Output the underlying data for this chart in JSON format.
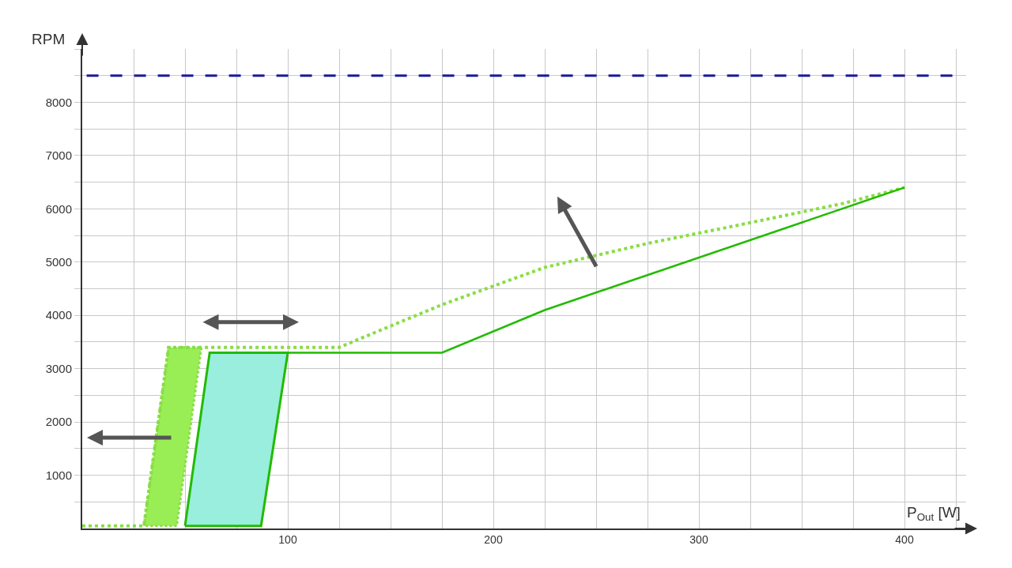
{
  "chart_data": {
    "type": "line",
    "xlabel": "P$_{Out}$ [W]",
    "ylabel": "RPM",
    "xlim": [
      0,
      430
    ],
    "xticks": [
      {
        "value": 0,
        "label": null
      },
      {
        "value": 25,
        "label": null
      },
      {
        "value": 50,
        "label": null
      },
      {
        "value": 75,
        "label": null
      },
      100,
      {
        "value": 125,
        "label": null
      },
      {
        "value": 150,
        "label": null
      },
      {
        "value": 175,
        "label": null
      },
      200,
      {
        "value": 225,
        "label": null
      },
      {
        "value": 250,
        "label": null
      },
      {
        "value": 275,
        "label": null
      },
      300,
      {
        "value": 325,
        "label": null
      },
      {
        "value": 350,
        "label": null
      },
      {
        "value": 375,
        "label": null
      },
      400,
      {
        "value": 425,
        "label": null
      }
    ],
    "ylim": [
      0,
      9000
    ],
    "yticks": [
      {
        "value": 500,
        "label": null
      },
      1000,
      {
        "value": 1500,
        "label": null
      },
      2000,
      {
        "value": 2500,
        "label": null
      },
      3000,
      {
        "value": 3500,
        "label": null
      },
      4000,
      {
        "value": 4500,
        "label": null
      },
      5000,
      {
        "value": 5500,
        "label": null
      },
      6000,
      {
        "value": 6500,
        "label": null
      },
      7000,
      {
        "value": 7500,
        "label": null
      },
      8000,
      {
        "value": 8500,
        "label": null
      },
      {
        "value": 9000,
        "label": null
      }
    ],
    "grid": true,
    "marker": "none",
    "series": [
      {
        "type": "area",
        "color": "#99ee55",
        "line_style": "dotted",
        "x": [
          30,
          42,
          58,
          46,
          30
        ],
        "values": [
          50,
          3400,
          3400,
          50,
          50
        ]
      },
      {
        "type": "area",
        "color": "#99eedd",
        "line_style": "solid",
        "x": [
          50,
          62,
          100,
          87,
          50
        ],
        "values": [
          50,
          3300,
          3300,
          50,
          50
        ]
      },
      {
        "color": "#88dd44",
        "line_style": "dotted",
        "x": [
          0,
          30,
          42,
          125,
          175,
          225,
          275,
          320,
          370,
          400
        ],
        "values": [
          50,
          50,
          3400,
          3400,
          4200,
          4900,
          5350,
          5700,
          6100,
          6400
        ]
      },
      {
        "color": "#22bb00",
        "line_style": "solid",
        "x": [
          100,
          175,
          225,
          400
        ],
        "values": [
          3300,
          3300,
          4100,
          6400
        ]
      }
    ],
    "ref_lines": [
      {
        "axis": "y",
        "value": 8500,
        "label": null,
        "color": "#1a1a99",
        "line_style": "dashed"
      }
    ]
  }
}
